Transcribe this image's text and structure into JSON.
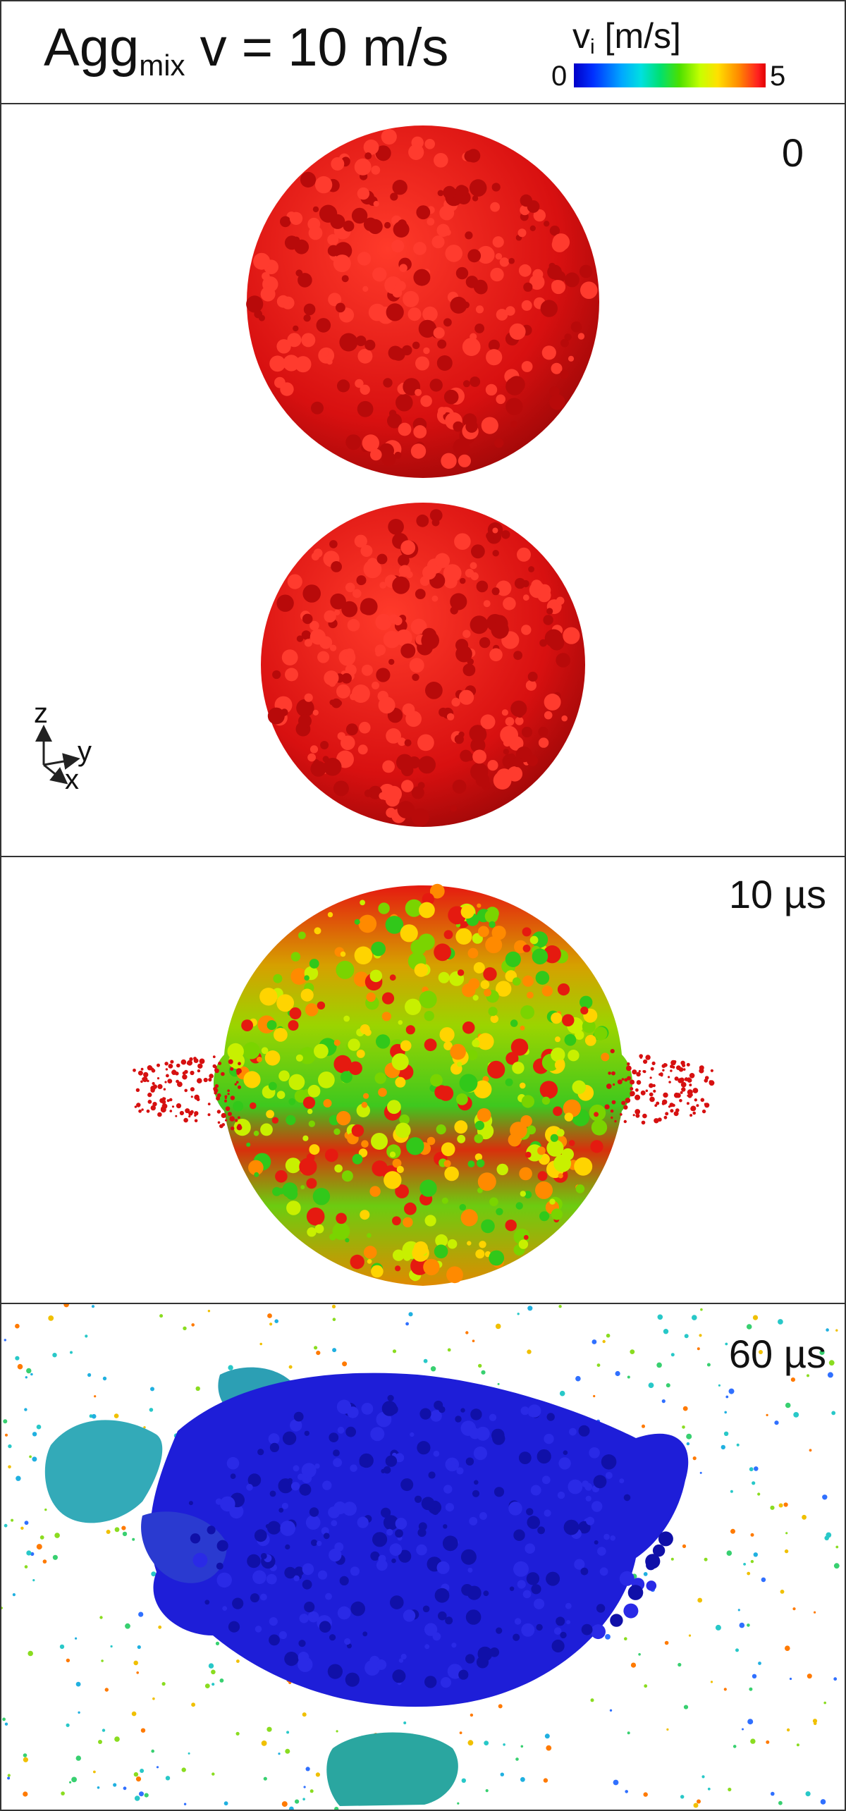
{
  "header": {
    "title_main": "Agg",
    "title_sub": "mix",
    "title_rest": " v = 10 m/s",
    "colorbar": {
      "label_main": "v",
      "label_sub": "i",
      "label_units": " [m/s]",
      "min_label": "0",
      "max_label": "5",
      "colors": [
        "#0000c8",
        "#00a8ff",
        "#00e070",
        "#c8ff00",
        "#ffe000",
        "#ff8a00",
        "#e00000"
      ]
    }
  },
  "axes_triad": {
    "z_label": "z",
    "y_label": "y",
    "x_label": "x"
  },
  "panels": [
    {
      "time_label": "0",
      "dominant_color": "#e01010"
    },
    {
      "time_label": "10 µs",
      "dominant_color": "#9bd400"
    },
    {
      "time_label": "60 µs",
      "dominant_color": "#1e1ed8"
    }
  ]
}
